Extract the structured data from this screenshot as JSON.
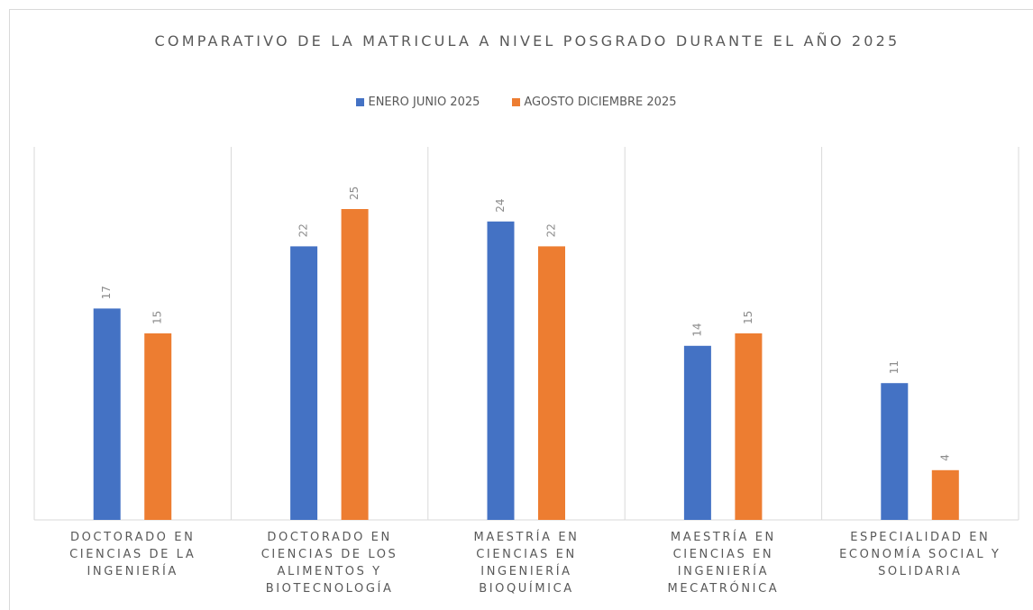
{
  "chart_data": {
    "type": "bar",
    "title": "COMPARATIVO DE LA MATRICULA A NIVEL POSGRADO DURANTE EL AÑO 2025",
    "categories": [
      "DOCTORADO EN CIENCIAS DE LA INGENIERÍA",
      "DOCTORADO EN CIENCIAS DE LOS ALIMENTOS Y BIOTECNOLOGÍA",
      "MAESTRÍA EN CIENCIAS EN INGENIERÍA BIOQUÍMICA",
      "MAESTRÍA EN CIENCIAS EN INGENIERÍA MECATRÓNICA",
      "ESPECIALIDAD EN ECONOMÍA SOCIAL Y SOLIDARIA"
    ],
    "series": [
      {
        "name": "ENERO JUNIO 2025",
        "color": "#4472c4",
        "values": [
          17,
          22,
          24,
          14,
          11
        ]
      },
      {
        "name": "AGOSTO DICIEMBRE 2025",
        "color": "#ed7d31",
        "values": [
          15,
          25,
          22,
          15,
          4
        ]
      }
    ],
    "ylim": [
      0,
      30
    ],
    "legend": "top"
  }
}
